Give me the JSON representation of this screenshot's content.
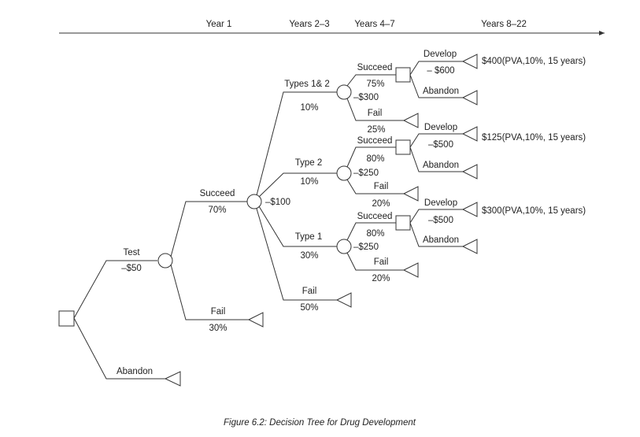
{
  "timeline": [
    "Year 1",
    "Years 2–3",
    "Years 4–7",
    "Years 8–22"
  ],
  "caption": "Figure 6.2: Decision Tree for Drug Development",
  "tree": {
    "test_label": "Test",
    "test_cost": "–$50",
    "abandon_label": "Abandon",
    "succeed_label": "Succeed",
    "succeed_prob": "70%",
    "fail_label": "Fail",
    "fail_prob": "30%",
    "stage2_cost": "–$100",
    "types12_label": "Types 1& 2",
    "types12_prob": "10%",
    "type2_label": "Type 2",
    "type2_prob": "10%",
    "type1_label": "Type 1",
    "type1_prob": "30%",
    "stage2_fail_label": "Fail",
    "stage2_fail_prob": "50%",
    "b12": {
      "cost": "–$300",
      "succeed": "Succeed",
      "succeed_prob": "75%",
      "fail": "Fail",
      "fail_prob": "25%",
      "develop": "Develop",
      "develop_cost": "– $600",
      "abandon": "Abandon",
      "payoff": "$400(PVA,10%, 15 years)"
    },
    "b2": {
      "cost": "–$250",
      "succeed": "Succeed",
      "succeed_prob": "80%",
      "fail": "Fail",
      "fail_prob": "20%",
      "develop": "Develop",
      "develop_cost": "–$500",
      "abandon": "Abandon",
      "payoff": "$125(PVA,10%, 15 years)"
    },
    "b1": {
      "cost": "–$250",
      "succeed": "Succeed",
      "succeed_prob": "80%",
      "fail": "Fail",
      "fail_prob": "20%",
      "develop": "Develop",
      "develop_cost": "–$500",
      "abandon": "Abandon",
      "payoff": "$300(PVA,10%, 15 years)"
    }
  }
}
